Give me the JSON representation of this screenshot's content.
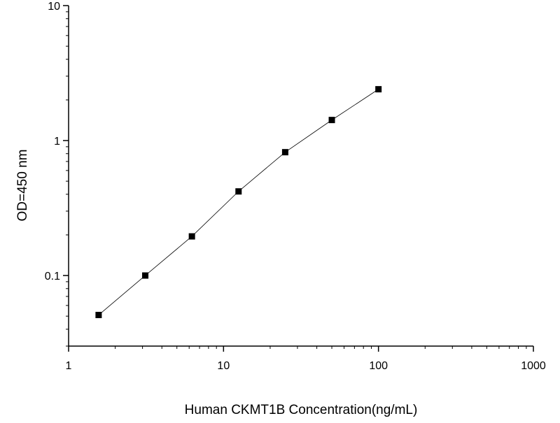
{
  "chart_data": {
    "type": "scatter",
    "title": "",
    "xlabel": "Human CKMT1B Concentration(ng/mL)",
    "ylabel": "OD=450 nm",
    "x_scale": "log",
    "y_scale": "log",
    "xlim": [
      1,
      1000
    ],
    "ylim": [
      0.03,
      10
    ],
    "x_ticks": [
      {
        "value": 1,
        "label": "1"
      },
      {
        "value": 10,
        "label": "10"
      },
      {
        "value": 100,
        "label": "100"
      },
      {
        "value": 1000,
        "label": "1000"
      }
    ],
    "y_ticks": [
      {
        "value": 0.1,
        "label": "0.1"
      },
      {
        "value": 1,
        "label": "1"
      },
      {
        "value": 10,
        "label": "10"
      }
    ],
    "grid": false,
    "legend": "none",
    "series": [
      {
        "marker": "square",
        "connected": true,
        "points": [
          {
            "x": 1.5625,
            "y": 0.051
          },
          {
            "x": 3.125,
            "y": 0.1
          },
          {
            "x": 6.25,
            "y": 0.195
          },
          {
            "x": 12.5,
            "y": 0.42
          },
          {
            "x": 25,
            "y": 0.82
          },
          {
            "x": 50,
            "y": 1.42
          },
          {
            "x": 100,
            "y": 2.4
          }
        ]
      }
    ],
    "colors": {
      "axis": "#000000",
      "line": "#000000",
      "marker": "#000000"
    }
  }
}
